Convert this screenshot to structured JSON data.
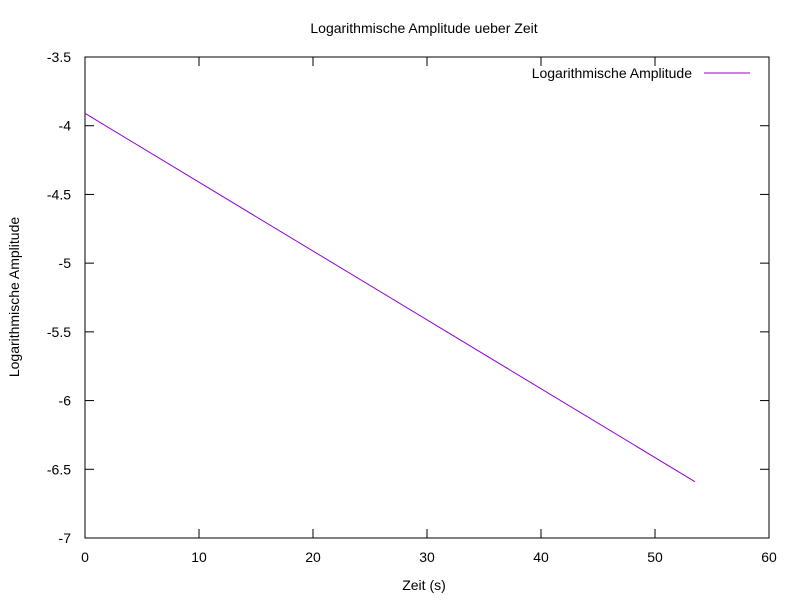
{
  "chart_data": {
    "type": "line",
    "title": "Logarithmische Amplitude ueber Zeit",
    "xlabel": "Zeit (s)",
    "ylabel": "Logarithmische Amplitude",
    "xlim": [
      0,
      60
    ],
    "ylim": [
      -7,
      -3.5
    ],
    "x_ticks": [
      0,
      10,
      20,
      30,
      40,
      50,
      60
    ],
    "y_ticks": [
      -7,
      -6.5,
      -6,
      -5.5,
      -5,
      -4.5,
      -4,
      -3.5
    ],
    "x_tick_labels": [
      "0",
      "10",
      "20",
      "30",
      "40",
      "50",
      "60"
    ],
    "y_tick_labels": [
      "-7",
      "-6.5",
      "-6",
      "-5.5",
      "-5",
      "-4.5",
      "-4",
      "-3.5"
    ],
    "grid": false,
    "legend_position": "top-right",
    "series": [
      {
        "name": "Logarithmische Amplitude",
        "color": "#9400d3",
        "x": [
          0,
          53.5
        ],
        "y": [
          -3.91,
          -6.59
        ]
      }
    ]
  }
}
